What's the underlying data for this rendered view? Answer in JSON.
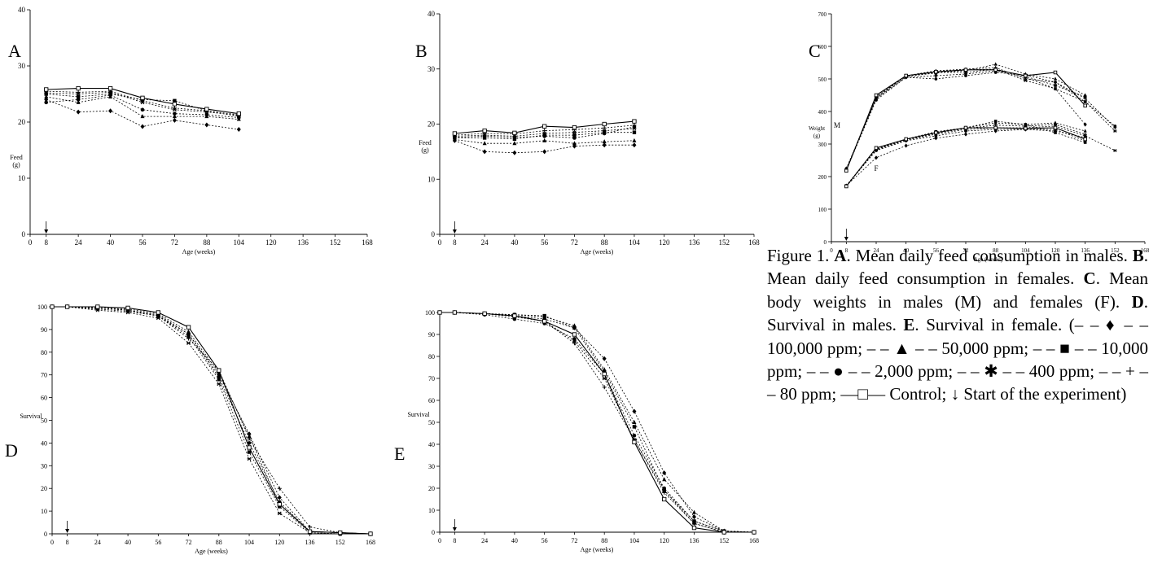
{
  "chart_data": [
    {
      "panel_label": "A",
      "type": "line",
      "xlabel": "Age (weeks)",
      "ylabel": "Feed\n(g)",
      "xlim": [
        0,
        168
      ],
      "ylim": [
        0,
        40
      ],
      "x_ticks": [
        0,
        8,
        24,
        40,
        56,
        72,
        88,
        104,
        120,
        136,
        152,
        168
      ],
      "y_ticks": [
        0,
        10,
        20,
        30,
        40
      ],
      "start_marker_x": 8,
      "x": [
        8,
        24,
        40,
        56,
        72,
        88,
        104
      ],
      "series": [
        {
          "marker": "diamond",
          "dashed": true,
          "values": [
            24.0,
            21.8,
            22.0,
            19.2,
            20.3,
            19.5,
            18.7
          ]
        },
        {
          "marker": "triangle",
          "dashed": true,
          "values": [
            24.5,
            23.5,
            24.5,
            21.0,
            21.0,
            21.0,
            20.5
          ]
        },
        {
          "marker": "square",
          "dashed": true,
          "values": [
            25.0,
            24.5,
            25.0,
            24.0,
            23.8,
            22.0,
            21.0
          ]
        },
        {
          "marker": "circle",
          "dashed": true,
          "values": [
            23.5,
            24.0,
            24.8,
            22.2,
            21.5,
            21.3,
            20.8
          ]
        },
        {
          "marker": "star",
          "dashed": true,
          "values": [
            25.2,
            25.0,
            25.3,
            23.5,
            22.2,
            21.8,
            21.2
          ]
        },
        {
          "marker": "plus",
          "dashed": true,
          "values": [
            25.5,
            25.3,
            25.5,
            23.8,
            22.5,
            22.0,
            21.3
          ]
        },
        {
          "marker": "open-square",
          "dashed": false,
          "values": [
            25.8,
            26.0,
            26.0,
            24.3,
            23.2,
            22.3,
            21.5
          ]
        }
      ]
    },
    {
      "panel_label": "B",
      "type": "line",
      "xlabel": "Age (weeks)",
      "ylabel": "Feed\n(g)",
      "xlim": [
        0,
        168
      ],
      "ylim": [
        0,
        40
      ],
      "x_ticks": [
        0,
        8,
        24,
        40,
        56,
        72,
        88,
        104,
        120,
        136,
        152,
        168
      ],
      "y_ticks": [
        0,
        10,
        20,
        30,
        40
      ],
      "start_marker_x": 8,
      "x": [
        8,
        24,
        40,
        56,
        72,
        88,
        104
      ],
      "series": [
        {
          "marker": "diamond",
          "dashed": true,
          "values": [
            17.0,
            15.0,
            14.8,
            15.0,
            16.0,
            16.2,
            16.2
          ]
        },
        {
          "marker": "triangle",
          "dashed": true,
          "values": [
            17.2,
            16.5,
            16.5,
            17.0,
            16.5,
            16.8,
            17.0
          ]
        },
        {
          "marker": "square",
          "dashed": true,
          "values": [
            17.5,
            17.5,
            17.3,
            18.0,
            18.0,
            18.5,
            18.5
          ]
        },
        {
          "marker": "circle",
          "dashed": true,
          "values": [
            17.6,
            17.8,
            17.6,
            17.8,
            17.5,
            18.3,
            19.5
          ]
        },
        {
          "marker": "star",
          "dashed": true,
          "values": [
            17.8,
            18.0,
            17.8,
            18.3,
            18.5,
            18.8,
            19.2
          ]
        },
        {
          "marker": "plus",
          "dashed": true,
          "values": [
            18.0,
            18.3,
            18.2,
            18.8,
            19.0,
            19.3,
            19.8
          ]
        },
        {
          "marker": "open-square",
          "dashed": false,
          "values": [
            18.3,
            18.8,
            18.4,
            19.6,
            19.4,
            20.0,
            20.5
          ]
        }
      ]
    },
    {
      "panel_label": "C",
      "type": "line",
      "xlabel": "Age (weeks)",
      "ylabel": "Weight\n(g)",
      "xlim": [
        0,
        168
      ],
      "ylim": [
        0,
        700
      ],
      "x_ticks": [
        0,
        8,
        24,
        40,
        56,
        72,
        88,
        104,
        120,
        136,
        152,
        168
      ],
      "y_ticks": [
        0,
        100,
        200,
        300,
        400,
        500,
        600,
        700
      ],
      "start_marker_x": 8,
      "annotations": [
        {
          "text": "M",
          "x": 3,
          "y": 350
        },
        {
          "text": "F",
          "x": 24,
          "y": 218
        }
      ],
      "x": [
        8,
        24,
        40,
        56,
        72,
        88,
        104,
        120,
        136,
        152
      ],
      "series_male": [
        {
          "marker": "diamond",
          "dashed": true,
          "values": [
            225,
            440,
            505,
            510,
            515,
            525,
            505,
            470,
            360,
            null
          ]
        },
        {
          "marker": "triangle",
          "dashed": true,
          "values": [
            222,
            445,
            508,
            520,
            525,
            545,
            515,
            500,
            450,
            null
          ]
        },
        {
          "marker": "square",
          "dashed": true,
          "values": [
            222,
            445,
            508,
            518,
            528,
            530,
            508,
            480,
            445,
            null
          ]
        },
        {
          "marker": "circle",
          "dashed": true,
          "values": [
            220,
            435,
            505,
            500,
            510,
            520,
            512,
            490,
            430,
            355
          ]
        },
        {
          "marker": "star",
          "dashed": true,
          "values": [
            220,
            440,
            510,
            520,
            520,
            530,
            495,
            470,
            430,
            340
          ]
        },
        {
          "marker": "plus",
          "dashed": true,
          "values": [
            220,
            445,
            510,
            525,
            530,
            535,
            500,
            490,
            440,
            350
          ]
        },
        {
          "marker": "open-square",
          "dashed": false,
          "values": [
            218,
            450,
            510,
            522,
            528,
            528,
            510,
            520,
            418,
            null
          ]
        }
      ],
      "series_female": [
        {
          "marker": "diamond",
          "dashed": true,
          "values": [
            172,
            258,
            295,
            318,
            330,
            340,
            345,
            345,
            310,
            null
          ]
        },
        {
          "marker": "triangle",
          "dashed": true,
          "values": [
            172,
            285,
            315,
            335,
            350,
            365,
            360,
            365,
            340,
            null
          ]
        },
        {
          "marker": "square",
          "dashed": true,
          "values": [
            172,
            285,
            315,
            338,
            350,
            370,
            360,
            335,
            305,
            null
          ]
        },
        {
          "marker": "circle",
          "dashed": true,
          "values": [
            172,
            280,
            310,
            325,
            340,
            345,
            345,
            340,
            320,
            null
          ]
        },
        {
          "marker": "star",
          "dashed": true,
          "values": [
            172,
            282,
            312,
            330,
            345,
            350,
            350,
            355,
            325,
            280
          ]
        },
        {
          "marker": "plus",
          "dashed": true,
          "values": [
            172,
            283,
            313,
            333,
            348,
            358,
            355,
            360,
            330,
            null
          ]
        },
        {
          "marker": "open-square",
          "dashed": false,
          "values": [
            170,
            288,
            315,
            335,
            350,
            350,
            348,
            350,
            315,
            null
          ]
        }
      ]
    },
    {
      "panel_label": "D",
      "type": "line",
      "xlabel": "Age (weeks)",
      "ylabel": "Survival",
      "xlim": [
        0,
        168
      ],
      "ylim": [
        0,
        100
      ],
      "x_ticks": [
        0,
        8,
        24,
        40,
        56,
        72,
        88,
        104,
        120,
        136,
        152,
        168
      ],
      "y_ticks": [
        0,
        10,
        20,
        30,
        40,
        50,
        60,
        70,
        80,
        90,
        100
      ],
      "start_marker_x": 8,
      "x": [
        0,
        8,
        24,
        40,
        56,
        72,
        88,
        104,
        120,
        136,
        152,
        168
      ],
      "series": [
        {
          "marker": "diamond",
          "dashed": true,
          "values": [
            100,
            100,
            99.5,
            98.5,
            96,
            88,
            70,
            44,
            16,
            1,
            0.5,
            0
          ]
        },
        {
          "marker": "triangle",
          "dashed": true,
          "values": [
            100,
            100,
            99.5,
            99,
            97,
            89,
            71,
            43,
            13,
            1,
            0.5,
            0
          ]
        },
        {
          "marker": "square",
          "dashed": true,
          "values": [
            100,
            100,
            99.5,
            98.5,
            96,
            87,
            68,
            36,
            12,
            0.5,
            0,
            0
          ]
        },
        {
          "marker": "circle",
          "dashed": true,
          "values": [
            100,
            100,
            99.5,
            98.5,
            96.5,
            88,
            69,
            40,
            14,
            1,
            0.5,
            0
          ]
        },
        {
          "marker": "star",
          "dashed": true,
          "values": [
            100,
            100,
            98.5,
            97.5,
            95,
            84,
            66,
            33,
            9,
            0.5,
            0,
            0
          ]
        },
        {
          "marker": "plus",
          "dashed": true,
          "values": [
            100,
            100,
            99,
            98,
            96,
            86,
            72,
            42,
            20,
            3,
            0.5,
            0
          ]
        },
        {
          "marker": "open-square",
          "dashed": false,
          "values": [
            100,
            100,
            100,
            99.5,
            97.5,
            91,
            72,
            38,
            13,
            1,
            0.5,
            0
          ]
        }
      ]
    },
    {
      "panel_label": "E",
      "type": "line",
      "xlabel": "Age (weeks)",
      "ylabel": "Survival",
      "xlim": [
        0,
        168
      ],
      "ylim": [
        0,
        100
      ],
      "x_ticks": [
        0,
        8,
        24,
        40,
        56,
        72,
        88,
        104,
        120,
        136,
        152,
        168
      ],
      "y_ticks": [
        0,
        10,
        20,
        30,
        40,
        50,
        60,
        70,
        80,
        90,
        100
      ],
      "start_marker_x": 8,
      "x": [
        0,
        8,
        24,
        40,
        56,
        72,
        88,
        104,
        120,
        136,
        152,
        168
      ],
      "series": [
        {
          "marker": "diamond",
          "dashed": true,
          "values": [
            100,
            100,
            99.5,
            98.5,
            97,
            93,
            79,
            55,
            27,
            7,
            0.5,
            0
          ]
        },
        {
          "marker": "triangle",
          "dashed": true,
          "values": [
            100,
            100,
            99.5,
            99,
            98,
            94,
            74,
            50,
            24,
            9,
            0.5,
            0
          ]
        },
        {
          "marker": "square",
          "dashed": true,
          "values": [
            100,
            100,
            99.5,
            99,
            98.5,
            93,
            73,
            48,
            19,
            5,
            0.5,
            0
          ]
        },
        {
          "marker": "circle",
          "dashed": true,
          "values": [
            100,
            100,
            99,
            97,
            95,
            88,
            72,
            44,
            20,
            5,
            0.5,
            0
          ]
        },
        {
          "marker": "star",
          "dashed": true,
          "values": [
            100,
            100,
            99.5,
            98,
            96,
            87,
            70,
            42,
            19,
            4,
            0,
            0
          ]
        },
        {
          "marker": "plus",
          "dashed": true,
          "values": [
            100,
            100,
            99.5,
            98.5,
            96,
            86,
            66,
            42,
            18,
            4,
            0,
            0
          ]
        },
        {
          "marker": "open-square",
          "dashed": false,
          "values": [
            100,
            100,
            99.5,
            98.5,
            96,
            90,
            72,
            41,
            15,
            2,
            0,
            0
          ]
        }
      ]
    }
  ],
  "caption": {
    "figure_label": "Figure 1.",
    "a_label": "A",
    "a_text": ". Mean daily feed consumption in males.",
    "b_label": "B",
    "b_text": ". Mean daily feed consumption in females.",
    "c_label": "C",
    "c_text": ". Mean body weights in males (M) and females (F).",
    "d_label": "D",
    "d_text": ". Survival in males.",
    "e_label": "E",
    "e_text": ". Survival in female. (",
    "legend_diamond": "– – ♦ – – 100,000 ppm;",
    "legend_triangle": "– – ▲ – – 50,000 ppm;",
    "legend_square": "– – ■ – – 10,000 ppm;",
    "legend_circle": "– – ● – – 2,000 ppm;",
    "legend_star": "– – ✱ – – 400 ppm;",
    "legend_plus": "– – + – – 80 ppm;",
    "legend_control": "—□— Control;",
    "legend_start": "↓ Start of the experiment)"
  }
}
